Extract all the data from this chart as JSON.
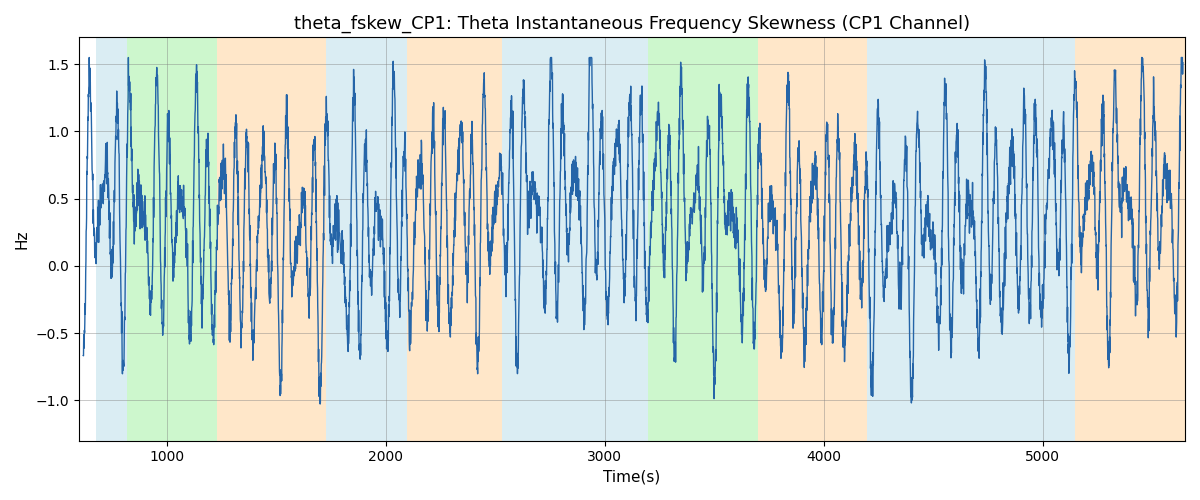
{
  "title": "theta_fskew_CP1: Theta Instantaneous Frequency Skewness (CP1 Channel)",
  "xlabel": "Time(s)",
  "ylabel": "Hz",
  "xlim": [
    600,
    5650
  ],
  "ylim": [
    -1.3,
    1.7
  ],
  "yticks": [
    -1.0,
    -0.5,
    0.0,
    0.5,
    1.0,
    1.5
  ],
  "xticks": [
    1000,
    2000,
    3000,
    4000,
    5000
  ],
  "background_regions": [
    {
      "xmin": 680,
      "xmax": 820,
      "color": "#add8e6",
      "alpha": 0.45
    },
    {
      "xmin": 820,
      "xmax": 1230,
      "color": "#90ee90",
      "alpha": 0.45
    },
    {
      "xmin": 1230,
      "xmax": 1730,
      "color": "#ffd59e",
      "alpha": 0.55
    },
    {
      "xmin": 1730,
      "xmax": 2100,
      "color": "#add8e6",
      "alpha": 0.45
    },
    {
      "xmin": 2100,
      "xmax": 2530,
      "color": "#ffd59e",
      "alpha": 0.55
    },
    {
      "xmin": 2530,
      "xmax": 2820,
      "color": "#add8e6",
      "alpha": 0.45
    },
    {
      "xmin": 2820,
      "xmax": 3070,
      "color": "#add8e6",
      "alpha": 0.45
    },
    {
      "xmin": 3070,
      "xmax": 3200,
      "color": "#add8e6",
      "alpha": 0.45
    },
    {
      "xmin": 3200,
      "xmax": 3700,
      "color": "#90ee90",
      "alpha": 0.45
    },
    {
      "xmin": 3700,
      "xmax": 4200,
      "color": "#ffd59e",
      "alpha": 0.55
    },
    {
      "xmin": 4200,
      "xmax": 4800,
      "color": "#add8e6",
      "alpha": 0.45
    },
    {
      "xmin": 4800,
      "xmax": 5150,
      "color": "#add8e6",
      "alpha": 0.45
    },
    {
      "xmin": 5150,
      "xmax": 5650,
      "color": "#ffd59e",
      "alpha": 0.55
    }
  ],
  "line_color": "#2565a8",
  "line_width": 1.0,
  "seed": 42,
  "n_points": 5000,
  "t_start": 620,
  "t_end": 5640,
  "figsize": [
    12.0,
    5.0
  ],
  "dpi": 100,
  "title_fontsize": 13,
  "axis_label_fontsize": 11,
  "tick_fontsize": 10
}
